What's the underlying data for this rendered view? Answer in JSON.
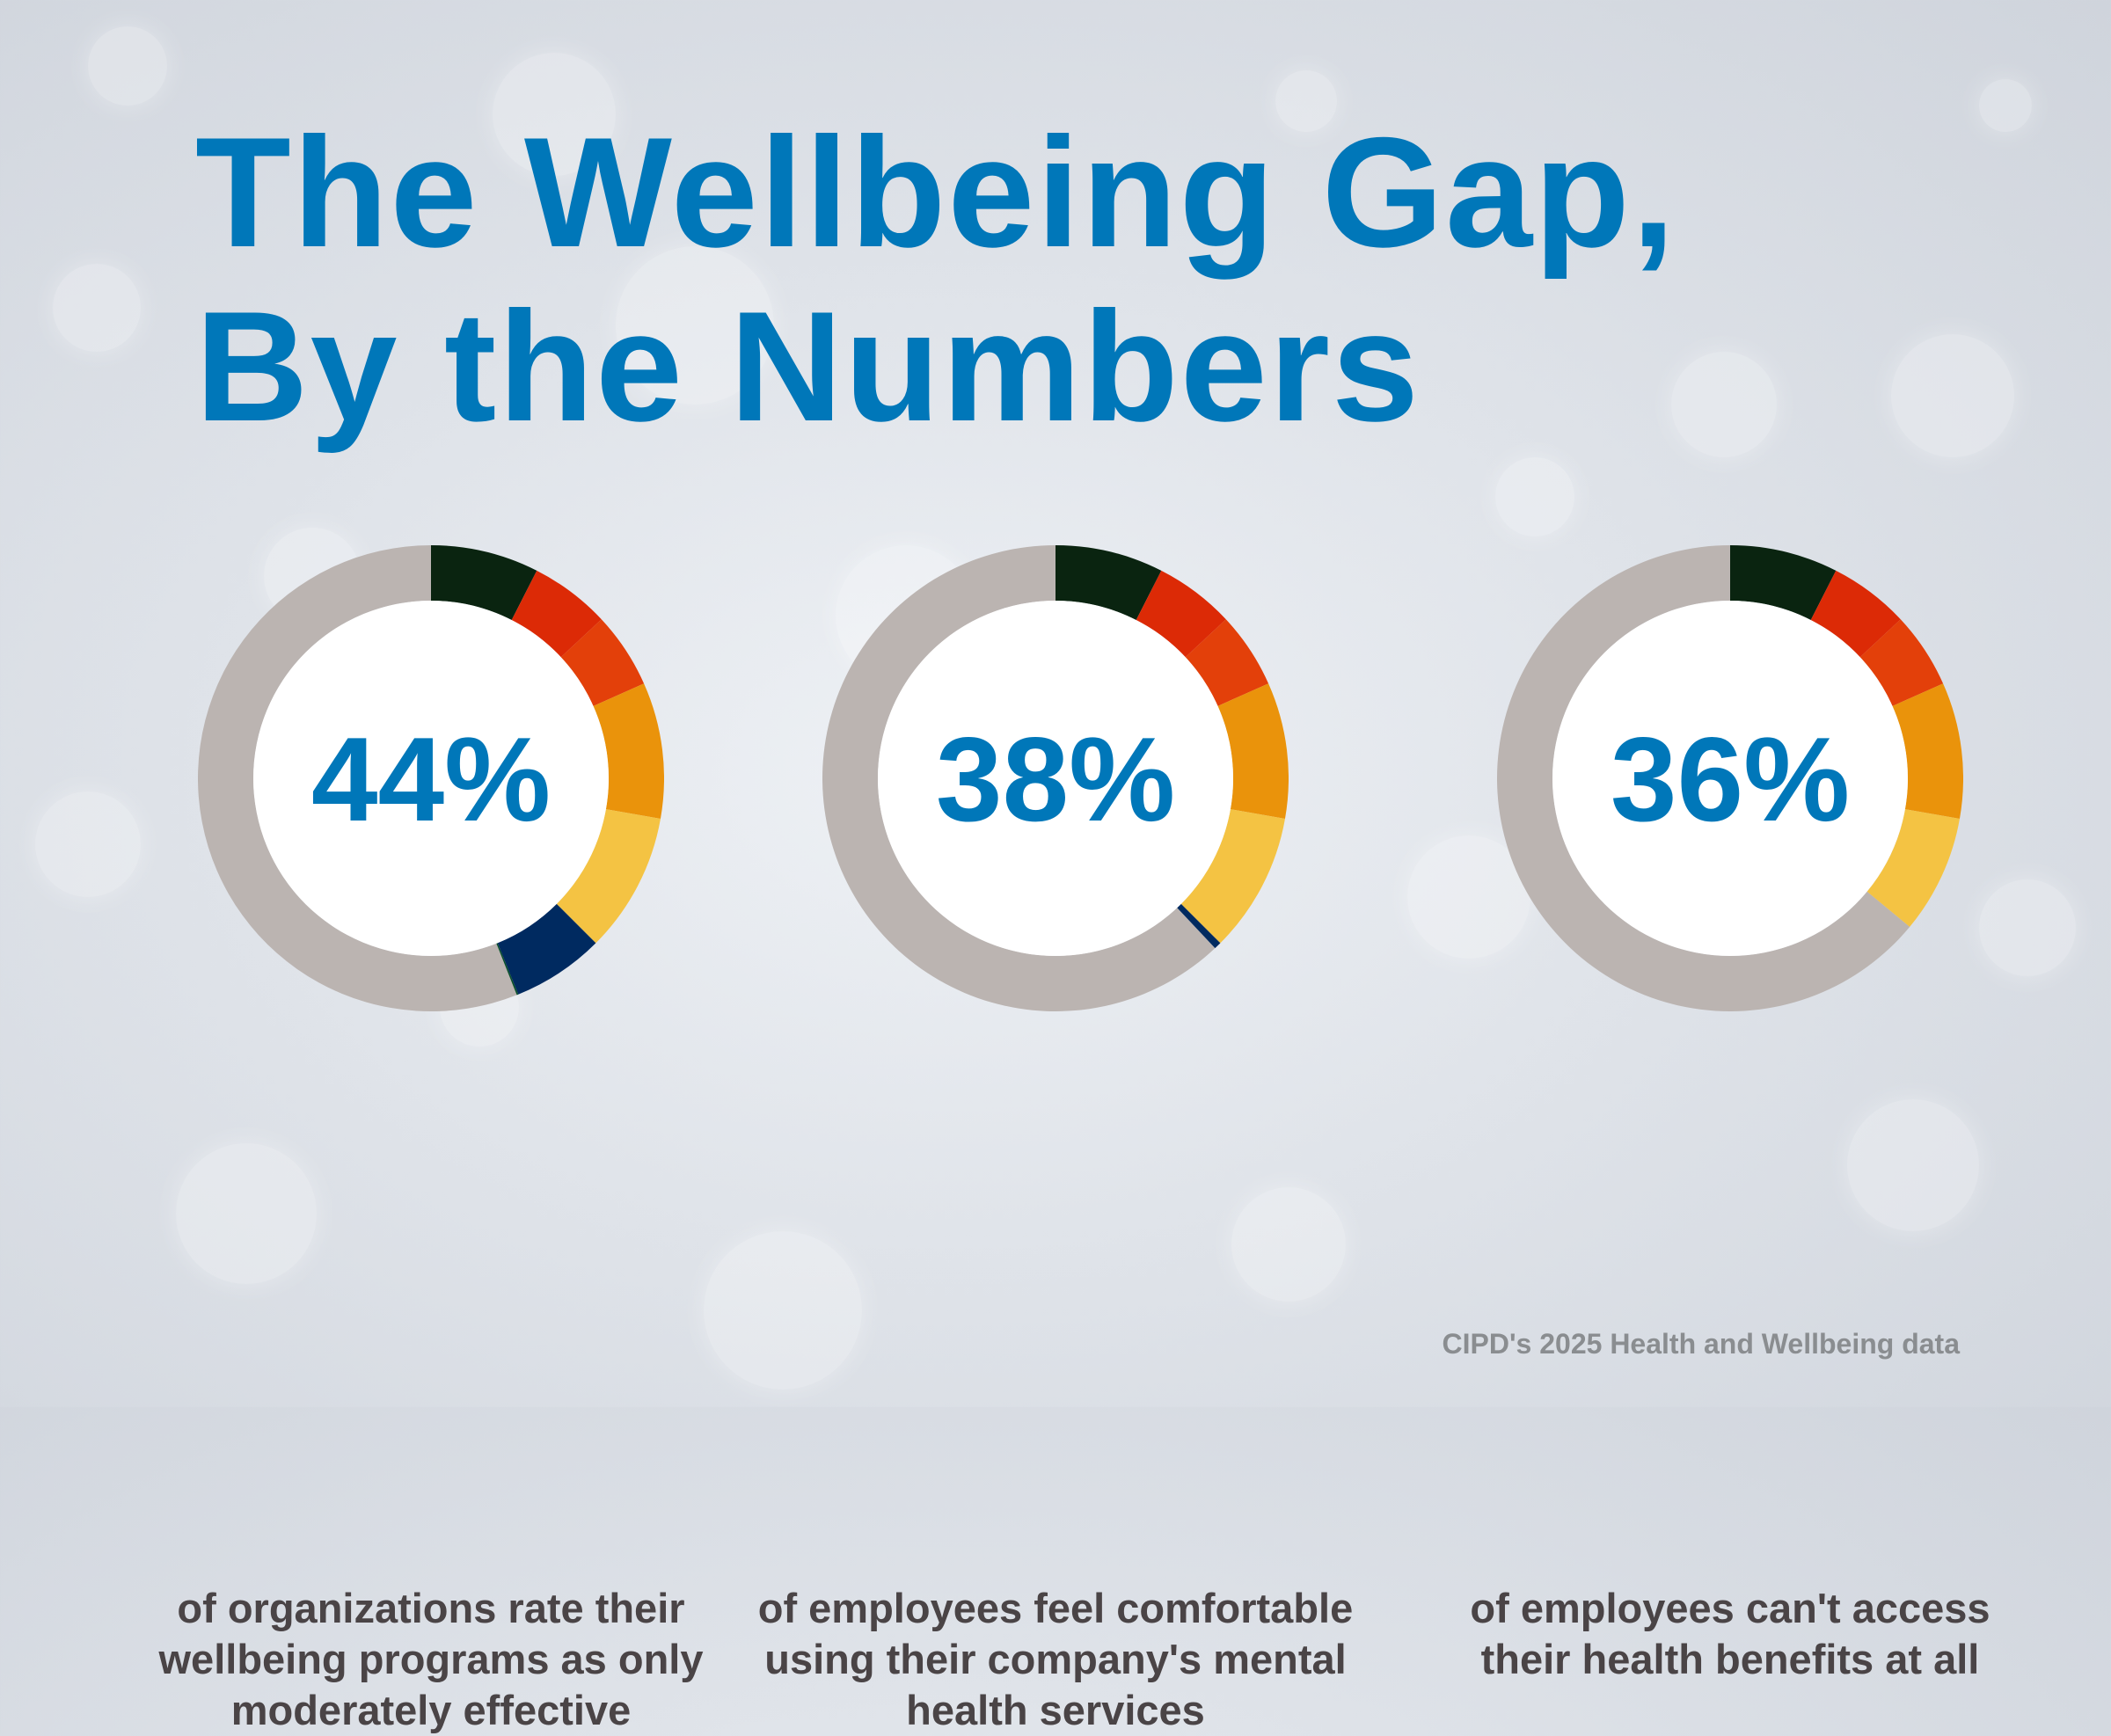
{
  "title": {
    "line1": "The Wellbeing Gap,",
    "line2": "By the Numbers"
  },
  "chart_data": {
    "type": "pie",
    "variant": "donut",
    "items": [
      {
        "value": 44,
        "label": "44%",
        "caption": "of organizations rate their wellbeing programs as only moderately effective"
      },
      {
        "value": 38,
        "label": "38%",
        "caption": "of employees feel comfortable using their company's mental health services"
      },
      {
        "value": 36,
        "label": "36%",
        "caption": "of employees can't access their health benefits at all"
      }
    ],
    "remainder_color": "#bbb4b1",
    "label_color": "#0077b9",
    "segment_colors": [
      "#0a2410",
      "#dc2a06",
      "#e3400a",
      "#ea930b",
      "#f4c343",
      "#002a60",
      "#0a4f2c"
    ]
  },
  "source": "CIPD's 2025 Health and Wellbeing data"
}
